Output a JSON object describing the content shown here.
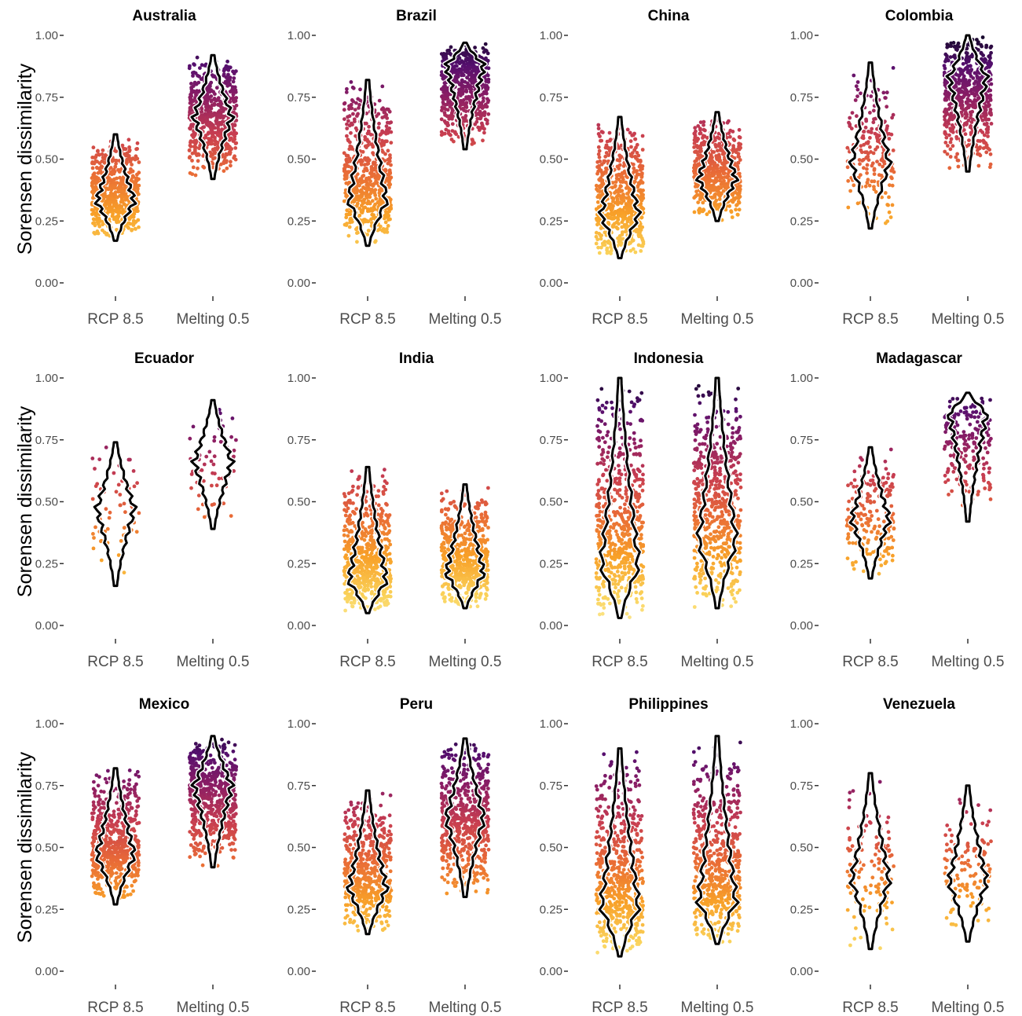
{
  "chart_data": {
    "type": "scatter",
    "subtype": "jittered-points-with-violin-outlines",
    "ylabel": "Sorensen dissimilarity",
    "ylim": [
      0,
      1
    ],
    "yticks": [
      "0.00",
      "0.25",
      "0.50",
      "0.75",
      "1.00"
    ],
    "categories": [
      "RCP 8.5",
      "Melting 0.5"
    ],
    "color_scale": "inferno (light yellow = low, dark purple = high)",
    "grid": false,
    "panels": [
      {
        "title": "Australia",
        "series": [
          {
            "category": "RCP 8.5",
            "n_points": 600,
            "min": 0.17,
            "max": 0.6,
            "median": 0.33
          },
          {
            "category": "Melting 0.5",
            "n_points": 600,
            "min": 0.42,
            "max": 0.92,
            "median": 0.67
          }
        ]
      },
      {
        "title": "Brazil",
        "series": [
          {
            "category": "RCP 8.5",
            "n_points": 600,
            "min": 0.15,
            "max": 0.82,
            "median": 0.33
          },
          {
            "category": "Melting 0.5",
            "n_points": 600,
            "min": 0.54,
            "max": 0.97,
            "median": 0.88
          }
        ]
      },
      {
        "title": "China",
        "series": [
          {
            "category": "RCP 8.5",
            "n_points": 600,
            "min": 0.1,
            "max": 0.67,
            "median": 0.27
          },
          {
            "category": "Melting 0.5",
            "n_points": 600,
            "min": 0.25,
            "max": 0.69,
            "median": 0.42
          }
        ]
      },
      {
        "title": "Colombia",
        "series": [
          {
            "category": "RCP 8.5",
            "n_points": 200,
            "min": 0.22,
            "max": 0.89,
            "median": 0.48
          },
          {
            "category": "Melting 0.5",
            "n_points": 600,
            "min": 0.45,
            "max": 1.0,
            "median": 0.83
          }
        ]
      },
      {
        "title": "Ecuador",
        "series": [
          {
            "category": "RCP 8.5",
            "n_points": 60,
            "min": 0.16,
            "max": 0.74,
            "median": 0.47
          },
          {
            "category": "Melting 0.5",
            "n_points": 60,
            "min": 0.39,
            "max": 0.91,
            "median": 0.66
          }
        ]
      },
      {
        "title": "India",
        "series": [
          {
            "category": "RCP 8.5",
            "n_points": 600,
            "min": 0.05,
            "max": 0.64,
            "median": 0.18
          },
          {
            "category": "Melting 0.5",
            "n_points": 600,
            "min": 0.07,
            "max": 0.57,
            "median": 0.21
          }
        ]
      },
      {
        "title": "Indonesia",
        "series": [
          {
            "category": "RCP 8.5",
            "n_points": 600,
            "min": 0.03,
            "max": 1.0,
            "median": 0.24
          },
          {
            "category": "Melting 0.5",
            "n_points": 600,
            "min": 0.07,
            "max": 1.0,
            "median": 0.34
          }
        ]
      },
      {
        "title": "Madagascar",
        "series": [
          {
            "category": "RCP 8.5",
            "n_points": 200,
            "min": 0.19,
            "max": 0.72,
            "median": 0.43
          },
          {
            "category": "Melting 0.5",
            "n_points": 200,
            "min": 0.42,
            "max": 0.94,
            "median": 0.86
          }
        ]
      },
      {
        "title": "Mexico",
        "series": [
          {
            "category": "RCP 8.5",
            "n_points": 600,
            "min": 0.27,
            "max": 0.82,
            "median": 0.47
          },
          {
            "category": "Melting 0.5",
            "n_points": 600,
            "min": 0.42,
            "max": 0.95,
            "median": 0.75
          }
        ]
      },
      {
        "title": "Peru",
        "series": [
          {
            "category": "RCP 8.5",
            "n_points": 600,
            "min": 0.15,
            "max": 0.73,
            "median": 0.33
          },
          {
            "category": "Melting 0.5",
            "n_points": 600,
            "min": 0.3,
            "max": 0.94,
            "median": 0.62
          }
        ]
      },
      {
        "title": "Philippines",
        "series": [
          {
            "category": "RCP 8.5",
            "n_points": 600,
            "min": 0.06,
            "max": 0.9,
            "median": 0.26
          },
          {
            "category": "Melting 0.5",
            "n_points": 600,
            "min": 0.11,
            "max": 0.95,
            "median": 0.28
          }
        ]
      },
      {
        "title": "Venezuela",
        "series": [
          {
            "category": "RCP 8.5",
            "n_points": 120,
            "min": 0.09,
            "max": 0.8,
            "median": 0.37
          },
          {
            "category": "Melting 0.5",
            "n_points": 120,
            "min": 0.12,
            "max": 0.75,
            "median": 0.36
          }
        ]
      }
    ]
  }
}
